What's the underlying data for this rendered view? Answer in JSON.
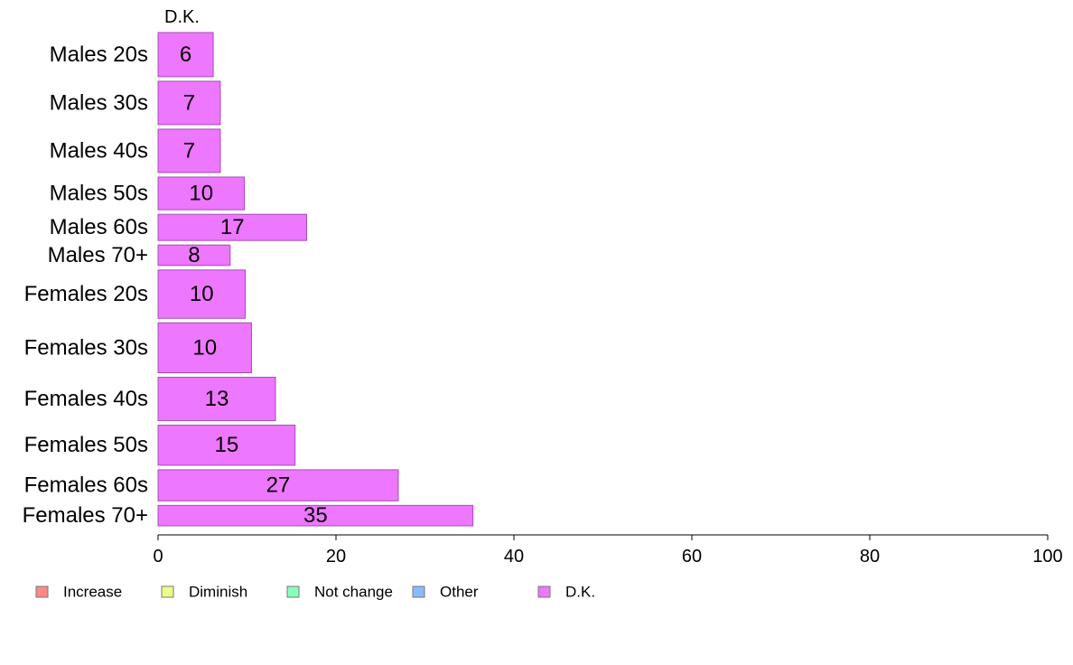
{
  "chart_data": {
    "type": "bar",
    "orientation": "horizontal",
    "stacked": true,
    "series_title": "D.K.",
    "categories": [
      "Males 20s",
      "Males 30s",
      "Males 40s",
      "Males 50s",
      "Males 60s",
      "Males 70+",
      "Females 20s",
      "Females 30s",
      "Females 40s",
      "Females 50s",
      "Females 60s",
      "Females 70+"
    ],
    "values": [
      6.2,
      7.0,
      7.0,
      9.7,
      16.7,
      8.1,
      9.8,
      10.5,
      13.2,
      15.4,
      27.0,
      35.4
    ],
    "data_labels": [
      "6",
      "7",
      "7",
      "10",
      "17",
      "8",
      "10",
      "10",
      "13",
      "15",
      "27",
      "35"
    ],
    "category_weights": [
      54,
      53,
      53,
      40,
      32,
      25,
      59,
      61,
      53,
      49,
      38,
      25
    ],
    "xlim": [
      0,
      100
    ],
    "xticks": [
      0,
      20,
      40,
      60,
      80,
      100
    ],
    "xtick_labels": [
      "0",
      "20",
      "40",
      "60",
      "80",
      "100"
    ],
    "bar_color": "#ee77ff",
    "bar_stroke": "#a050b0",
    "legend": {
      "position": "bottom-left",
      "entries": [
        {
          "label": "Increase",
          "color": "#ff8888"
        },
        {
          "label": "Diminish",
          "color": "#eeff88"
        },
        {
          "label": "Not change",
          "color": "#88ffbb"
        },
        {
          "label": "Other",
          "color": "#88bbff"
        },
        {
          "label": "D.K.",
          "color": "#ee77ff"
        }
      ]
    },
    "grid": false
  }
}
